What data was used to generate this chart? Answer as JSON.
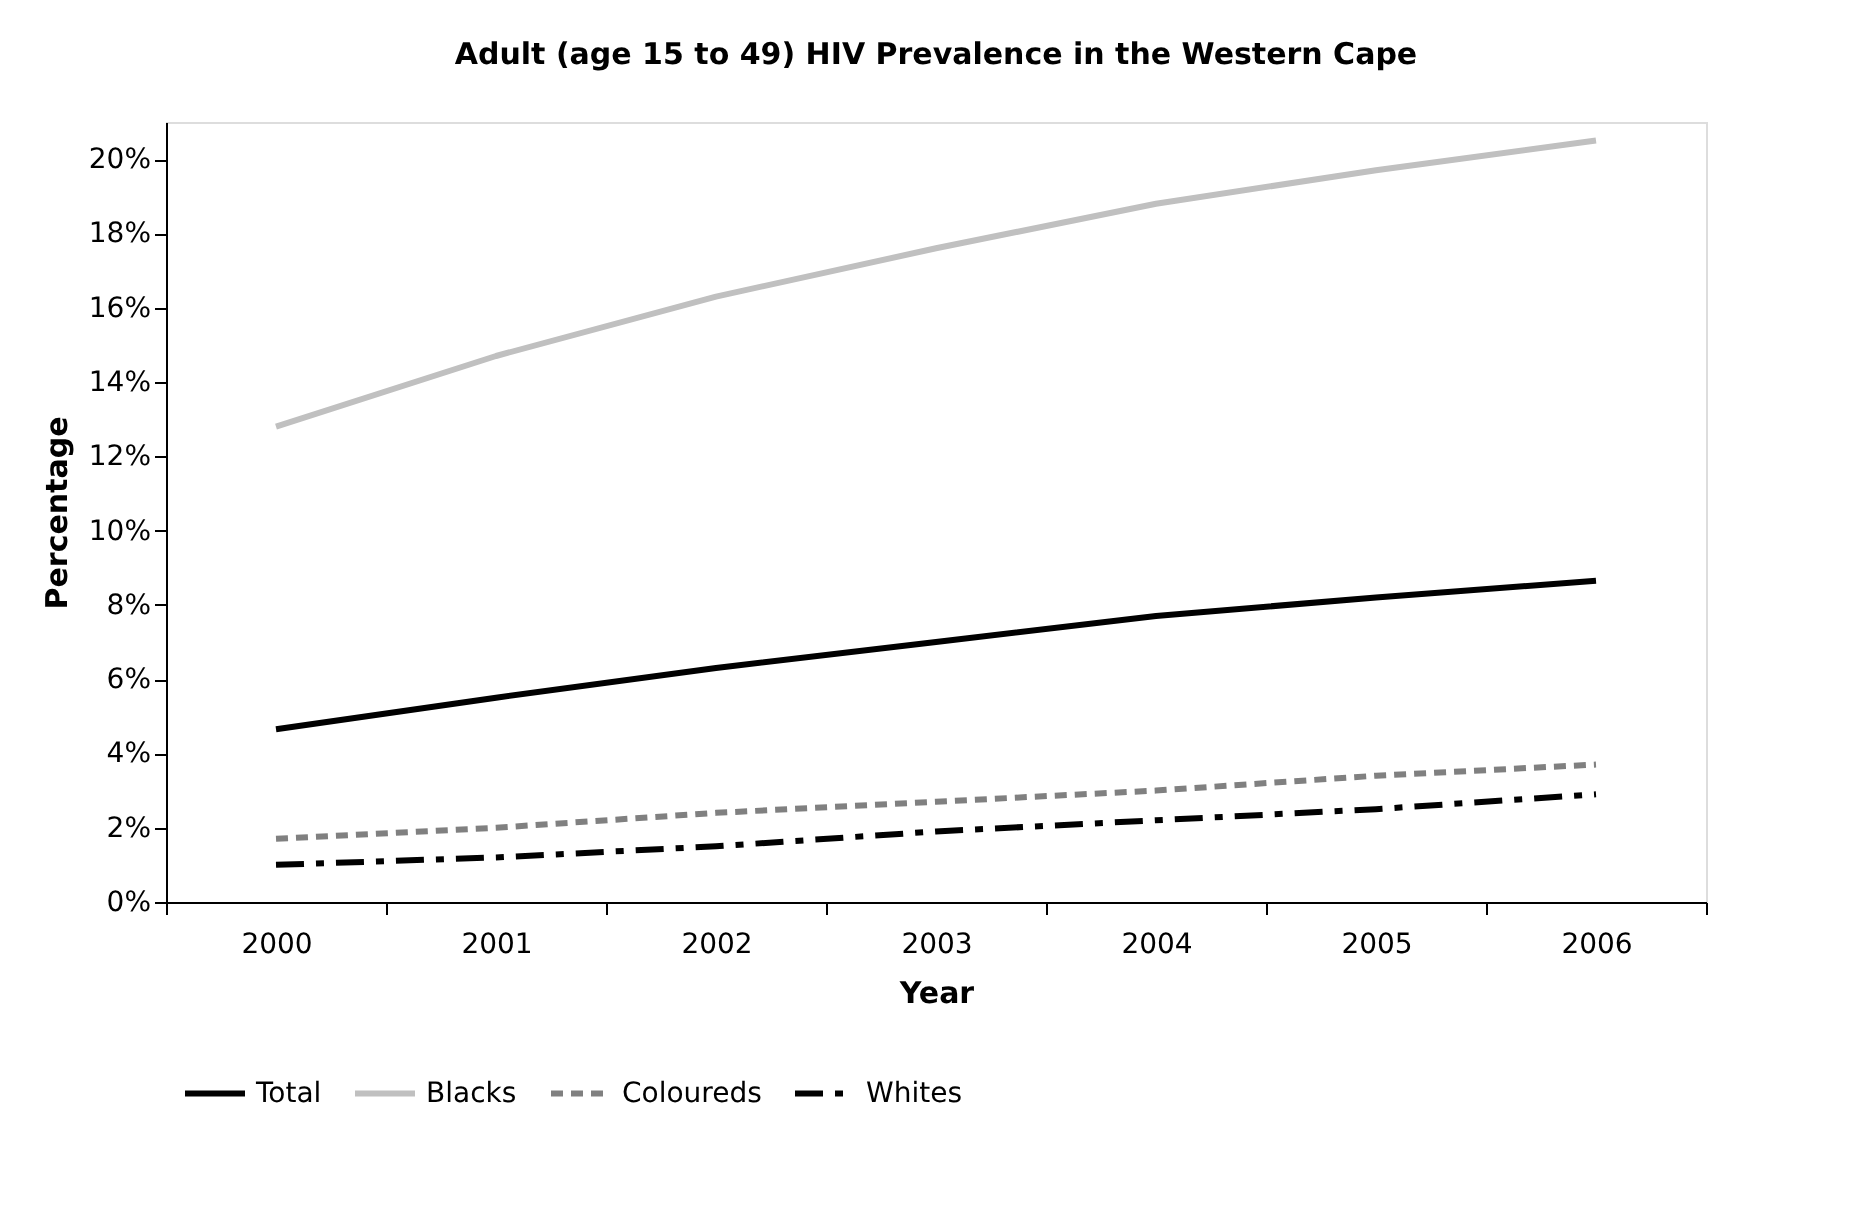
{
  "chart_data": {
    "type": "line",
    "title": "Adult (age 15 to 49) HIV Prevalence in the Western Cape",
    "xlabel": "Year",
    "ylabel": "Percentage",
    "categories": [
      "2000",
      "2001",
      "2002",
      "2003",
      "2004",
      "2005",
      "2006"
    ],
    "series": [
      {
        "name": "Total",
        "color": "#000000",
        "line_style": "solid",
        "values": [
          4.65,
          5.5,
          6.3,
          7.0,
          7.7,
          8.2,
          8.65
        ]
      },
      {
        "name": "Blacks",
        "color": "#c0c0c0",
        "line_style": "solid",
        "values": [
          12.8,
          14.7,
          16.3,
          17.6,
          18.8,
          19.7,
          20.5
        ]
      },
      {
        "name": "Coloureds",
        "color": "#808080",
        "line_style": "dashed",
        "values": [
          1.7,
          2.0,
          2.4,
          2.7,
          3.0,
          3.4,
          3.7
        ]
      },
      {
        "name": "Whites",
        "color": "#000000",
        "line_style": "dashdot",
        "values": [
          1.0,
          1.2,
          1.5,
          1.9,
          2.2,
          2.5,
          2.9
        ]
      }
    ],
    "ylim": [
      0,
      21
    ],
    "yticks": [
      {
        "value": 0,
        "label": "0%"
      },
      {
        "value": 2,
        "label": "2%"
      },
      {
        "value": 4,
        "label": "4%"
      },
      {
        "value": 6,
        "label": "6%"
      },
      {
        "value": 8,
        "label": "8%"
      },
      {
        "value": 10,
        "label": "10%"
      },
      {
        "value": 12,
        "label": "12%"
      },
      {
        "value": 14,
        "label": "14%"
      },
      {
        "value": 16,
        "label": "16%"
      },
      {
        "value": 18,
        "label": "18%"
      },
      {
        "value": 20,
        "label": "20%"
      }
    ],
    "grid": false,
    "legend": "bottom",
    "marker": "none"
  }
}
